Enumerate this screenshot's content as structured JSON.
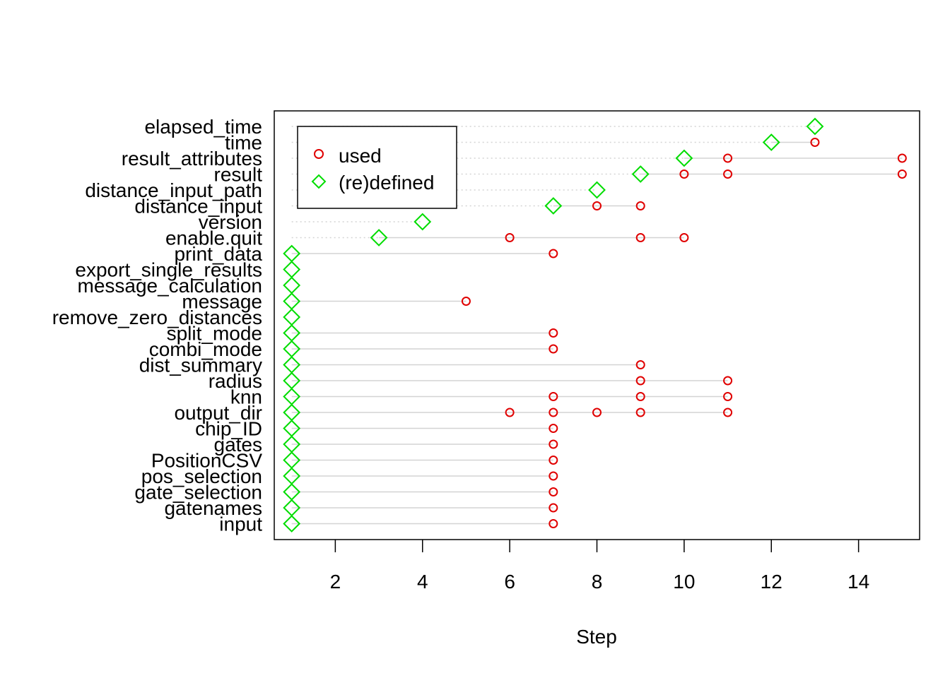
{
  "chart_data": {
    "type": "scatter",
    "title": "",
    "xlabel": "Step",
    "ylabel": "",
    "xlim": [
      0.6,
      15.4
    ],
    "x_ticks": [
      "2",
      "4",
      "6",
      "8",
      "10",
      "12",
      "14"
    ],
    "x_tick_values": [
      2,
      4,
      6,
      8,
      10,
      12,
      14
    ],
    "legend": {
      "position": "top-left",
      "entries": [
        {
          "label": "used",
          "marker": "circle",
          "color": "#e00000"
        },
        {
          "label": "(re)defined",
          "marker": "diamond",
          "color": "#00dd00"
        }
      ]
    },
    "colors": {
      "used": "#e00000",
      "defined": "#00dd00",
      "segment": "#d3d3d3",
      "dotted": "#d3d3d3"
    },
    "variables": [
      {
        "name": "elapsed_time",
        "defined": [
          13
        ],
        "used": [],
        "dotted": true
      },
      {
        "name": "time",
        "defined": [
          12
        ],
        "used": [
          13
        ],
        "dotted": true
      },
      {
        "name": "result_attributes",
        "defined": [
          10
        ],
        "used": [
          11,
          15
        ],
        "dotted": true
      },
      {
        "name": "result",
        "defined": [
          9
        ],
        "used": [
          10,
          11,
          15
        ],
        "dotted": true
      },
      {
        "name": "distance_input_path",
        "defined": [
          8
        ],
        "used": [],
        "dotted": true
      },
      {
        "name": "distance_input",
        "defined": [
          7
        ],
        "used": [
          8,
          9
        ],
        "dotted": true
      },
      {
        "name": "version",
        "defined": [
          4
        ],
        "used": [],
        "dotted": true
      },
      {
        "name": "enable.quit",
        "defined": [
          3
        ],
        "used": [
          6,
          9,
          10
        ],
        "dotted": true
      },
      {
        "name": "print_data",
        "defined": [
          1
        ],
        "used": [
          7
        ],
        "dotted": false
      },
      {
        "name": "export_single_results",
        "defined": [
          1
        ],
        "used": [],
        "dotted": false
      },
      {
        "name": "message_calculation",
        "defined": [
          1
        ],
        "used": [],
        "dotted": false
      },
      {
        "name": "message",
        "defined": [
          1
        ],
        "used": [
          5
        ],
        "dotted": false
      },
      {
        "name": "remove_zero_distances",
        "defined": [
          1
        ],
        "used": [],
        "dotted": false
      },
      {
        "name": "split_mode",
        "defined": [
          1
        ],
        "used": [
          7
        ],
        "dotted": false
      },
      {
        "name": "combi_mode",
        "defined": [
          1
        ],
        "used": [
          7
        ],
        "dotted": false
      },
      {
        "name": "dist_summary",
        "defined": [
          1
        ],
        "used": [
          9
        ],
        "dotted": false
      },
      {
        "name": "radius",
        "defined": [
          1
        ],
        "used": [
          9,
          11
        ],
        "dotted": false
      },
      {
        "name": "knn",
        "defined": [
          1
        ],
        "used": [
          7,
          9,
          11
        ],
        "dotted": false
      },
      {
        "name": "output_dir",
        "defined": [
          1
        ],
        "used": [
          6,
          7,
          8,
          9,
          11
        ],
        "dotted": false
      },
      {
        "name": "chip_ID",
        "defined": [
          1
        ],
        "used": [
          7
        ],
        "dotted": false
      },
      {
        "name": "gates",
        "defined": [
          1
        ],
        "used": [
          7
        ],
        "dotted": false
      },
      {
        "name": "PositionCSV",
        "defined": [
          1
        ],
        "used": [
          7
        ],
        "dotted": false
      },
      {
        "name": "pos_selection",
        "defined": [
          1
        ],
        "used": [
          7
        ],
        "dotted": false
      },
      {
        "name": "gate_selection",
        "defined": [
          1
        ],
        "used": [
          7
        ],
        "dotted": false
      },
      {
        "name": "gatenames",
        "defined": [
          1
        ],
        "used": [
          7
        ],
        "dotted": false
      },
      {
        "name": "input",
        "defined": [
          1
        ],
        "used": [
          7
        ],
        "dotted": false
      }
    ]
  }
}
